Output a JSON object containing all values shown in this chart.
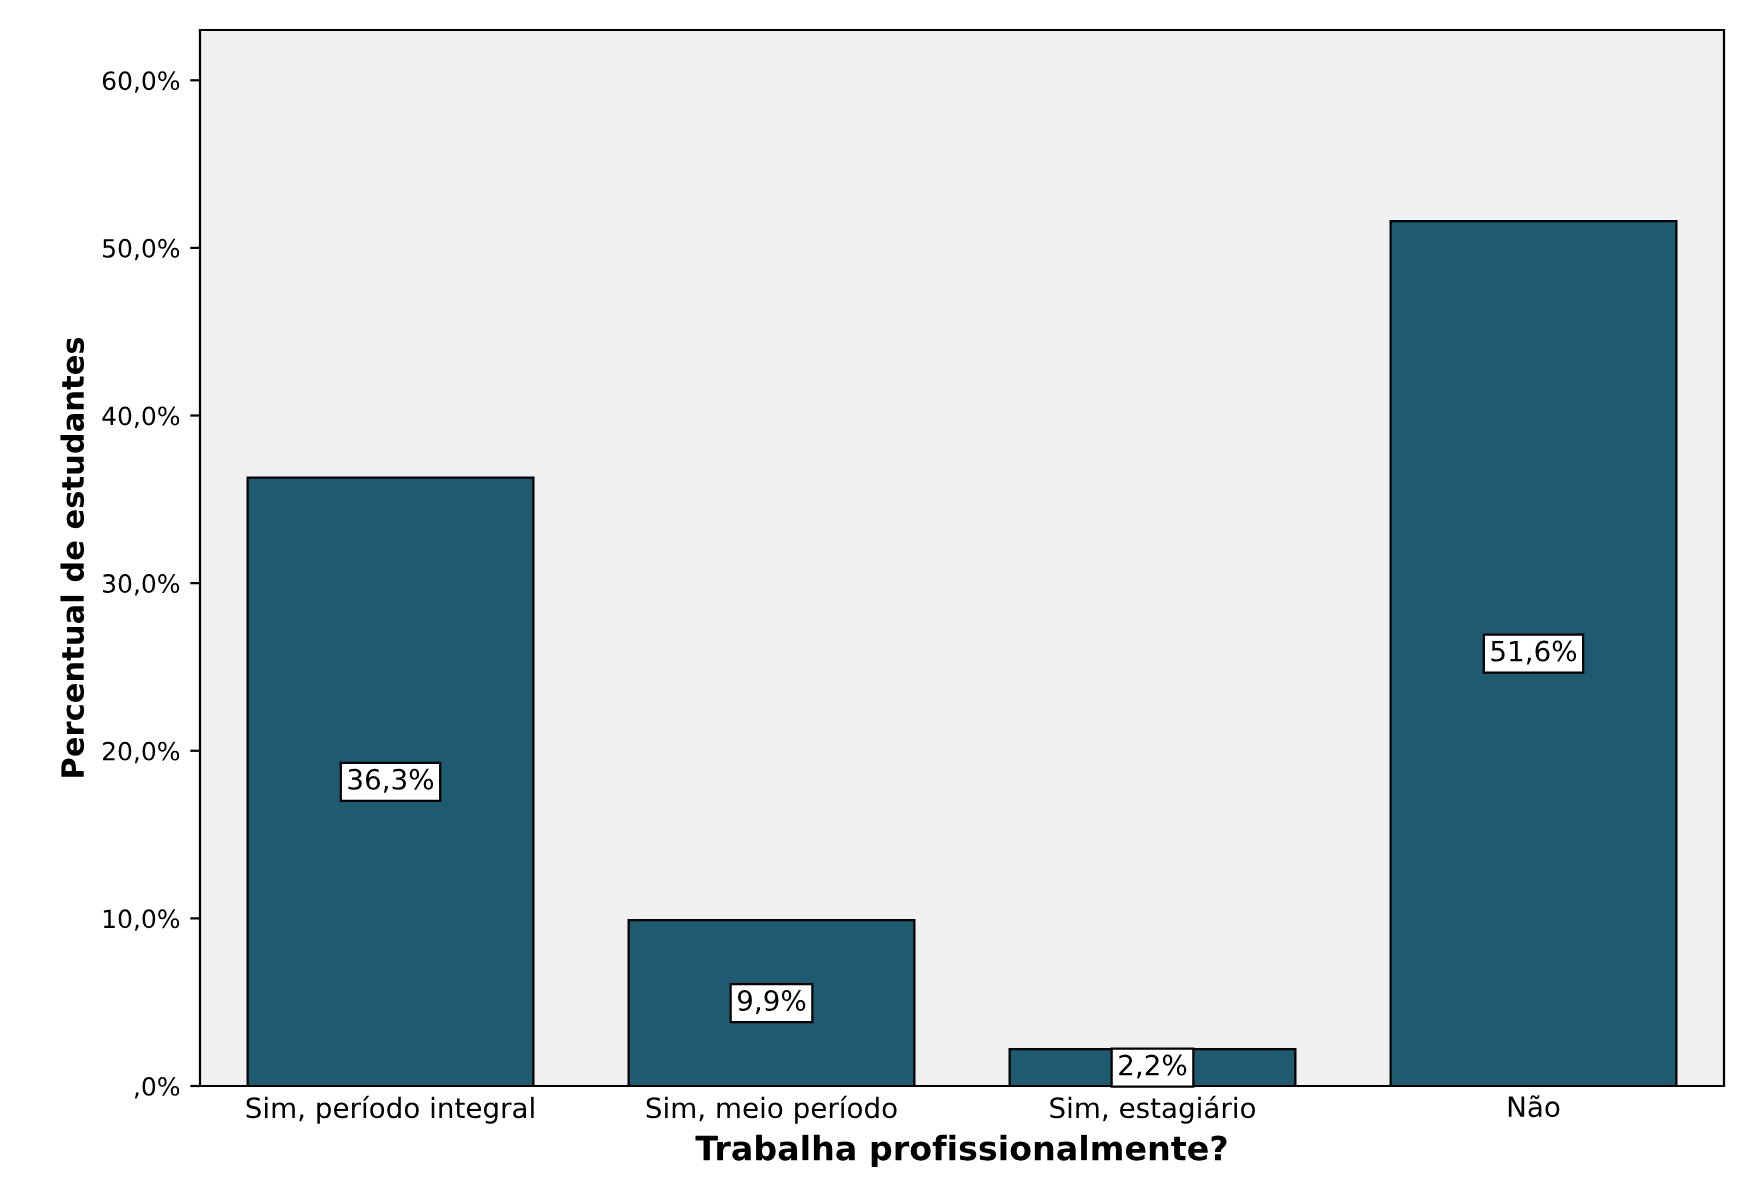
{
  "chart_data": {
    "type": "bar",
    "xlabel": "Trabalha profissionalmente?",
    "ylabel": "Percentual de estudantes",
    "categories": [
      "Sim, período integral",
      "Sim, meio período",
      "Sim, estagiário",
      "Não"
    ],
    "values": [
      36.3,
      9.9,
      2.2,
      51.6
    ],
    "value_labels": [
      "36,3%",
      "9,9%",
      "2,2%",
      "51,6%"
    ],
    "color": "#1f5b70",
    "ylim": [
      0,
      63
    ],
    "yticks": [
      {
        "value": 0,
        "label": ",0%"
      },
      {
        "value": 10,
        "label": "10,0%"
      },
      {
        "value": 20,
        "label": "20,0%"
      },
      {
        "value": 30,
        "label": "30,0%"
      },
      {
        "value": 40,
        "label": "40,0%"
      },
      {
        "value": 50,
        "label": "50,0%"
      },
      {
        "value": 60,
        "label": "60,0%"
      }
    ],
    "grid": false
  }
}
